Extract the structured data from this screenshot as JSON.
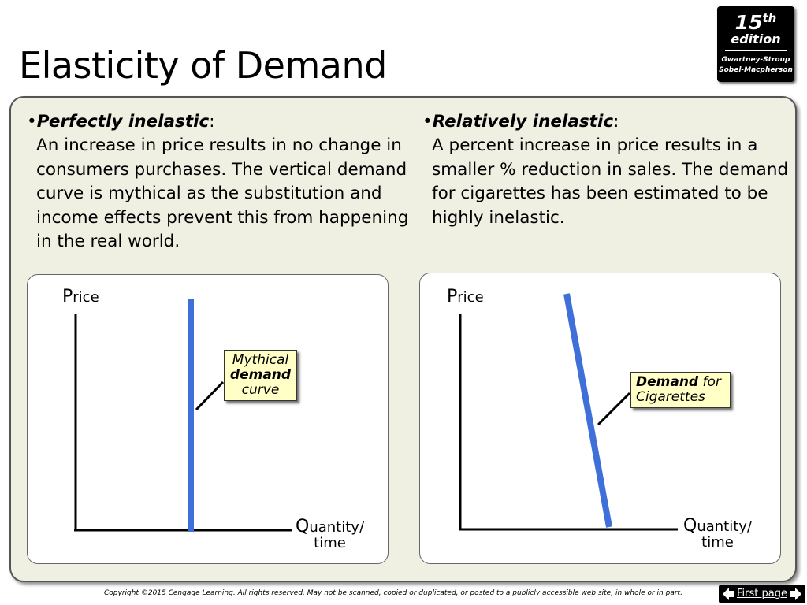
{
  "header": {
    "title": "Elasticity of Demand"
  },
  "badge": {
    "edition_number": "15",
    "edition_suffix": "th",
    "edition_word": "edition",
    "authors_line1": "Gwartney-Stroup",
    "authors_line2": "Sobel-Macpherson"
  },
  "left": {
    "bullet": "•",
    "heading": "Perfectly inelastic",
    "colon": ":",
    "body": "An increase in price results in no change in consumers purchases.  The vertical demand curve is mythical as the substitution and income effects prevent this from happening in the real world.",
    "graph": {
      "y_axis_cap": "P",
      "y_axis_rest": "rice",
      "x_axis_cap": "Q",
      "x_axis_rest": "uantity/",
      "x_axis_line2": "time",
      "callout_line1": "Mythical",
      "callout_line2": "demand",
      "callout_line3": "curve",
      "curve_color": "#3f6fd8"
    }
  },
  "right": {
    "bullet": "•",
    "heading": "Relatively inelastic",
    "colon": ":",
    "body": "A percent increase in price results in a smaller % reduction in sales. The demand for cigarettes has been estimated to be highly inelastic.",
    "graph": {
      "y_axis_cap": "P",
      "y_axis_rest": "rice",
      "x_axis_cap": "Q",
      "x_axis_rest": "uantity/",
      "x_axis_line2": "time",
      "callout_bold": "Demand",
      "callout_rest": " for",
      "callout_line2": "Cigarettes",
      "curve_color": "#3f6fd8"
    }
  },
  "footer": {
    "copyright": "Copyright ©2015 Cengage Learning. All rights reserved. May not be scanned, copied or duplicated, or posted to a publicly accessible web site, in whole or in part.",
    "nav_label": "First page"
  }
}
